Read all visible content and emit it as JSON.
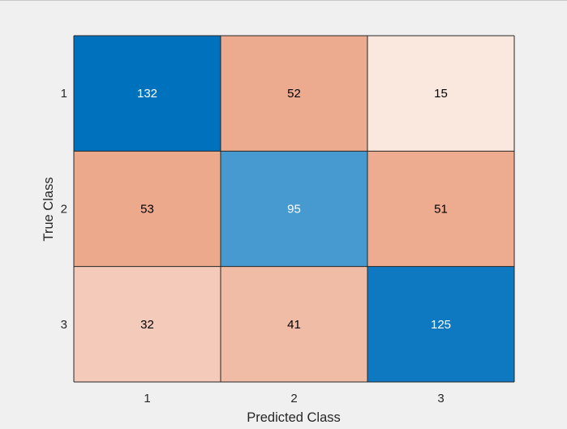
{
  "chart_data": {
    "type": "heatmap",
    "xlabel": "Predicted Class",
    "ylabel": "True Class",
    "x_categories": [
      "1",
      "2",
      "3"
    ],
    "y_categories": [
      "1",
      "2",
      "3"
    ],
    "values": [
      [
        132,
        52,
        15
      ],
      [
        53,
        95,
        51
      ],
      [
        32,
        41,
        125
      ]
    ],
    "colors": {
      "figure_background": "#f0f0f0",
      "diagonal_high": "#0072bd",
      "off_diagonal_high": "#d95319",
      "cell_border": "#262626",
      "dark_text": "#000000",
      "light_text": "#ffffff"
    }
  }
}
